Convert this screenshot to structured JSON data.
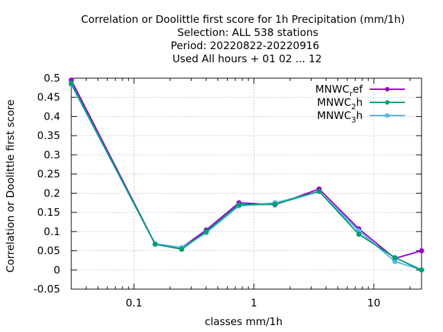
{
  "chart_data": {
    "type": "line",
    "title_lines": [
      "Correlation or Doolittle first score  for 1h Precipitation (mm/1h)",
      "Selection: ALL    538 stations",
      "Period: 20220822-20220916",
      "Used  All hours + 01 02 ... 12"
    ],
    "xlabel": "classes mm/1h",
    "ylabel": "Correlation or Doolittle first score",
    "x_scale": "log",
    "xlim": [
      0.03,
      25
    ],
    "ylim": [
      -0.05,
      0.5
    ],
    "x_ticks": [
      {
        "value": 0.1,
        "label": "0.1"
      },
      {
        "value": 1,
        "label": "1"
      },
      {
        "value": 10,
        "label": "10"
      }
    ],
    "y_ticks": [
      {
        "value": -0.05,
        "label": "-0.05"
      },
      {
        "value": 0,
        "label": "0"
      },
      {
        "value": 0.05,
        "label": "0.05"
      },
      {
        "value": 0.1,
        "label": "0.1"
      },
      {
        "value": 0.15,
        "label": "0.15"
      },
      {
        "value": 0.2,
        "label": "0.2"
      },
      {
        "value": 0.25,
        "label": "0.25"
      },
      {
        "value": 0.3,
        "label": "0.3"
      },
      {
        "value": 0.35,
        "label": "0.35"
      },
      {
        "value": 0.4,
        "label": "0.4"
      },
      {
        "value": 0.45,
        "label": "0.45"
      },
      {
        "value": 0.5,
        "label": "0.5"
      }
    ],
    "grid": true,
    "legend_position": "top-right",
    "x": [
      0.03,
      0.15,
      0.25,
      0.4,
      0.75,
      1.5,
      3.5,
      7.5,
      15,
      25
    ],
    "series": [
      {
        "name": "MNWC_ref",
        "legend_base": "MNWC",
        "legend_sub": "r",
        "legend_tail": "ef",
        "color": "#9400d3",
        "values": [
          0.495,
          0.068,
          0.058,
          0.104,
          0.175,
          0.17,
          0.211,
          0.107,
          0.03,
          0.05
        ]
      },
      {
        "name": "MNWC_2h",
        "legend_base": "MNWC",
        "legend_sub": "2",
        "legend_tail": "h",
        "color": "#009e73",
        "values": [
          0.487,
          0.067,
          0.054,
          0.1,
          0.17,
          0.171,
          0.205,
          0.093,
          0.032,
          0.0
        ]
      },
      {
        "name": "MNWC_3h",
        "legend_base": "MNWC",
        "legend_sub": "3",
        "legend_tail": "h",
        "color": "#56b4e9",
        "values": [
          0.483,
          0.068,
          0.058,
          0.097,
          0.167,
          0.175,
          0.204,
          0.102,
          0.022,
          0.0
        ]
      }
    ]
  }
}
